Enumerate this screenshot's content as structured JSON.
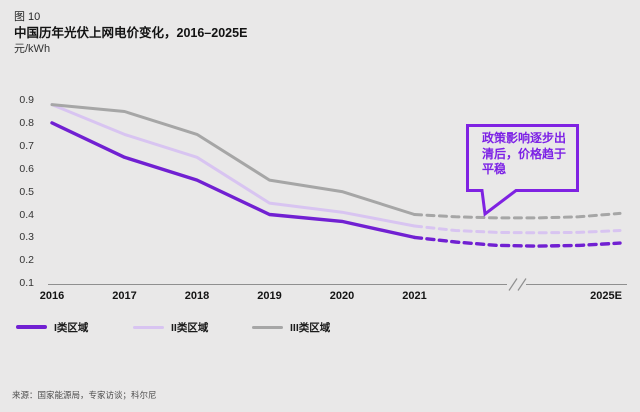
{
  "figure": {
    "label": "图 10",
    "title": "中国历年光伏上网电价变化，2016–2025E",
    "unit": "元/kWh"
  },
  "chart_data": {
    "type": "line",
    "title": "中国历年光伏上网电价变化，2016–2025E",
    "ylabel": "元/kWh",
    "x_categories": [
      "2016",
      "2017",
      "2018",
      "2019",
      "2020",
      "2021",
      "2025E"
    ],
    "y_ticks": [
      "0.9",
      "0.8",
      "0.7",
      "0.6",
      "0.5",
      "0.4",
      "0.3",
      "0.2",
      "0.1"
    ],
    "ylim": [
      0.1,
      0.9
    ],
    "x_axis_break_between": [
      "2021",
      "2025E"
    ],
    "grid": false,
    "legend_position": "bottom-left",
    "series": [
      {
        "name": "I类区域",
        "color": "#7120d2",
        "line_width": 3.4,
        "historical_years": [
          "2016",
          "2017",
          "2018",
          "2019",
          "2020",
          "2021"
        ],
        "historical_values": [
          0.8,
          0.65,
          0.55,
          0.4,
          0.37,
          0.3
        ],
        "forecast_dashed_values": [
          0.3,
          0.28,
          0.265,
          0.262,
          0.265,
          0.275
        ],
        "value_2025E": 0.28
      },
      {
        "name": "II类区域",
        "color": "#d8c4f1",
        "line_width": 3,
        "historical_years": [
          "2016",
          "2017",
          "2018",
          "2019",
          "2020",
          "2021"
        ],
        "historical_values": [
          0.88,
          0.75,
          0.65,
          0.45,
          0.41,
          0.35
        ],
        "forecast_dashed_values": [
          0.35,
          0.33,
          0.322,
          0.32,
          0.322,
          0.33
        ],
        "value_2025E": 0.33
      },
      {
        "name": "III类区域",
        "color": "#a6a6a6",
        "line_width": 3,
        "historical_years": [
          "2016",
          "2017",
          "2018",
          "2019",
          "2020",
          "2021"
        ],
        "historical_values": [
          0.88,
          0.85,
          0.75,
          0.55,
          0.5,
          0.4
        ],
        "forecast_dashed_values": [
          0.4,
          0.39,
          0.385,
          0.385,
          0.39,
          0.405
        ],
        "value_2025E": 0.4
      }
    ],
    "annotation": "政策影响逐步出清后，价格趋于平稳"
  },
  "annotation_box_color": "#7f22e2",
  "source": "来源：国家能源局，专家访谈；科尔尼"
}
